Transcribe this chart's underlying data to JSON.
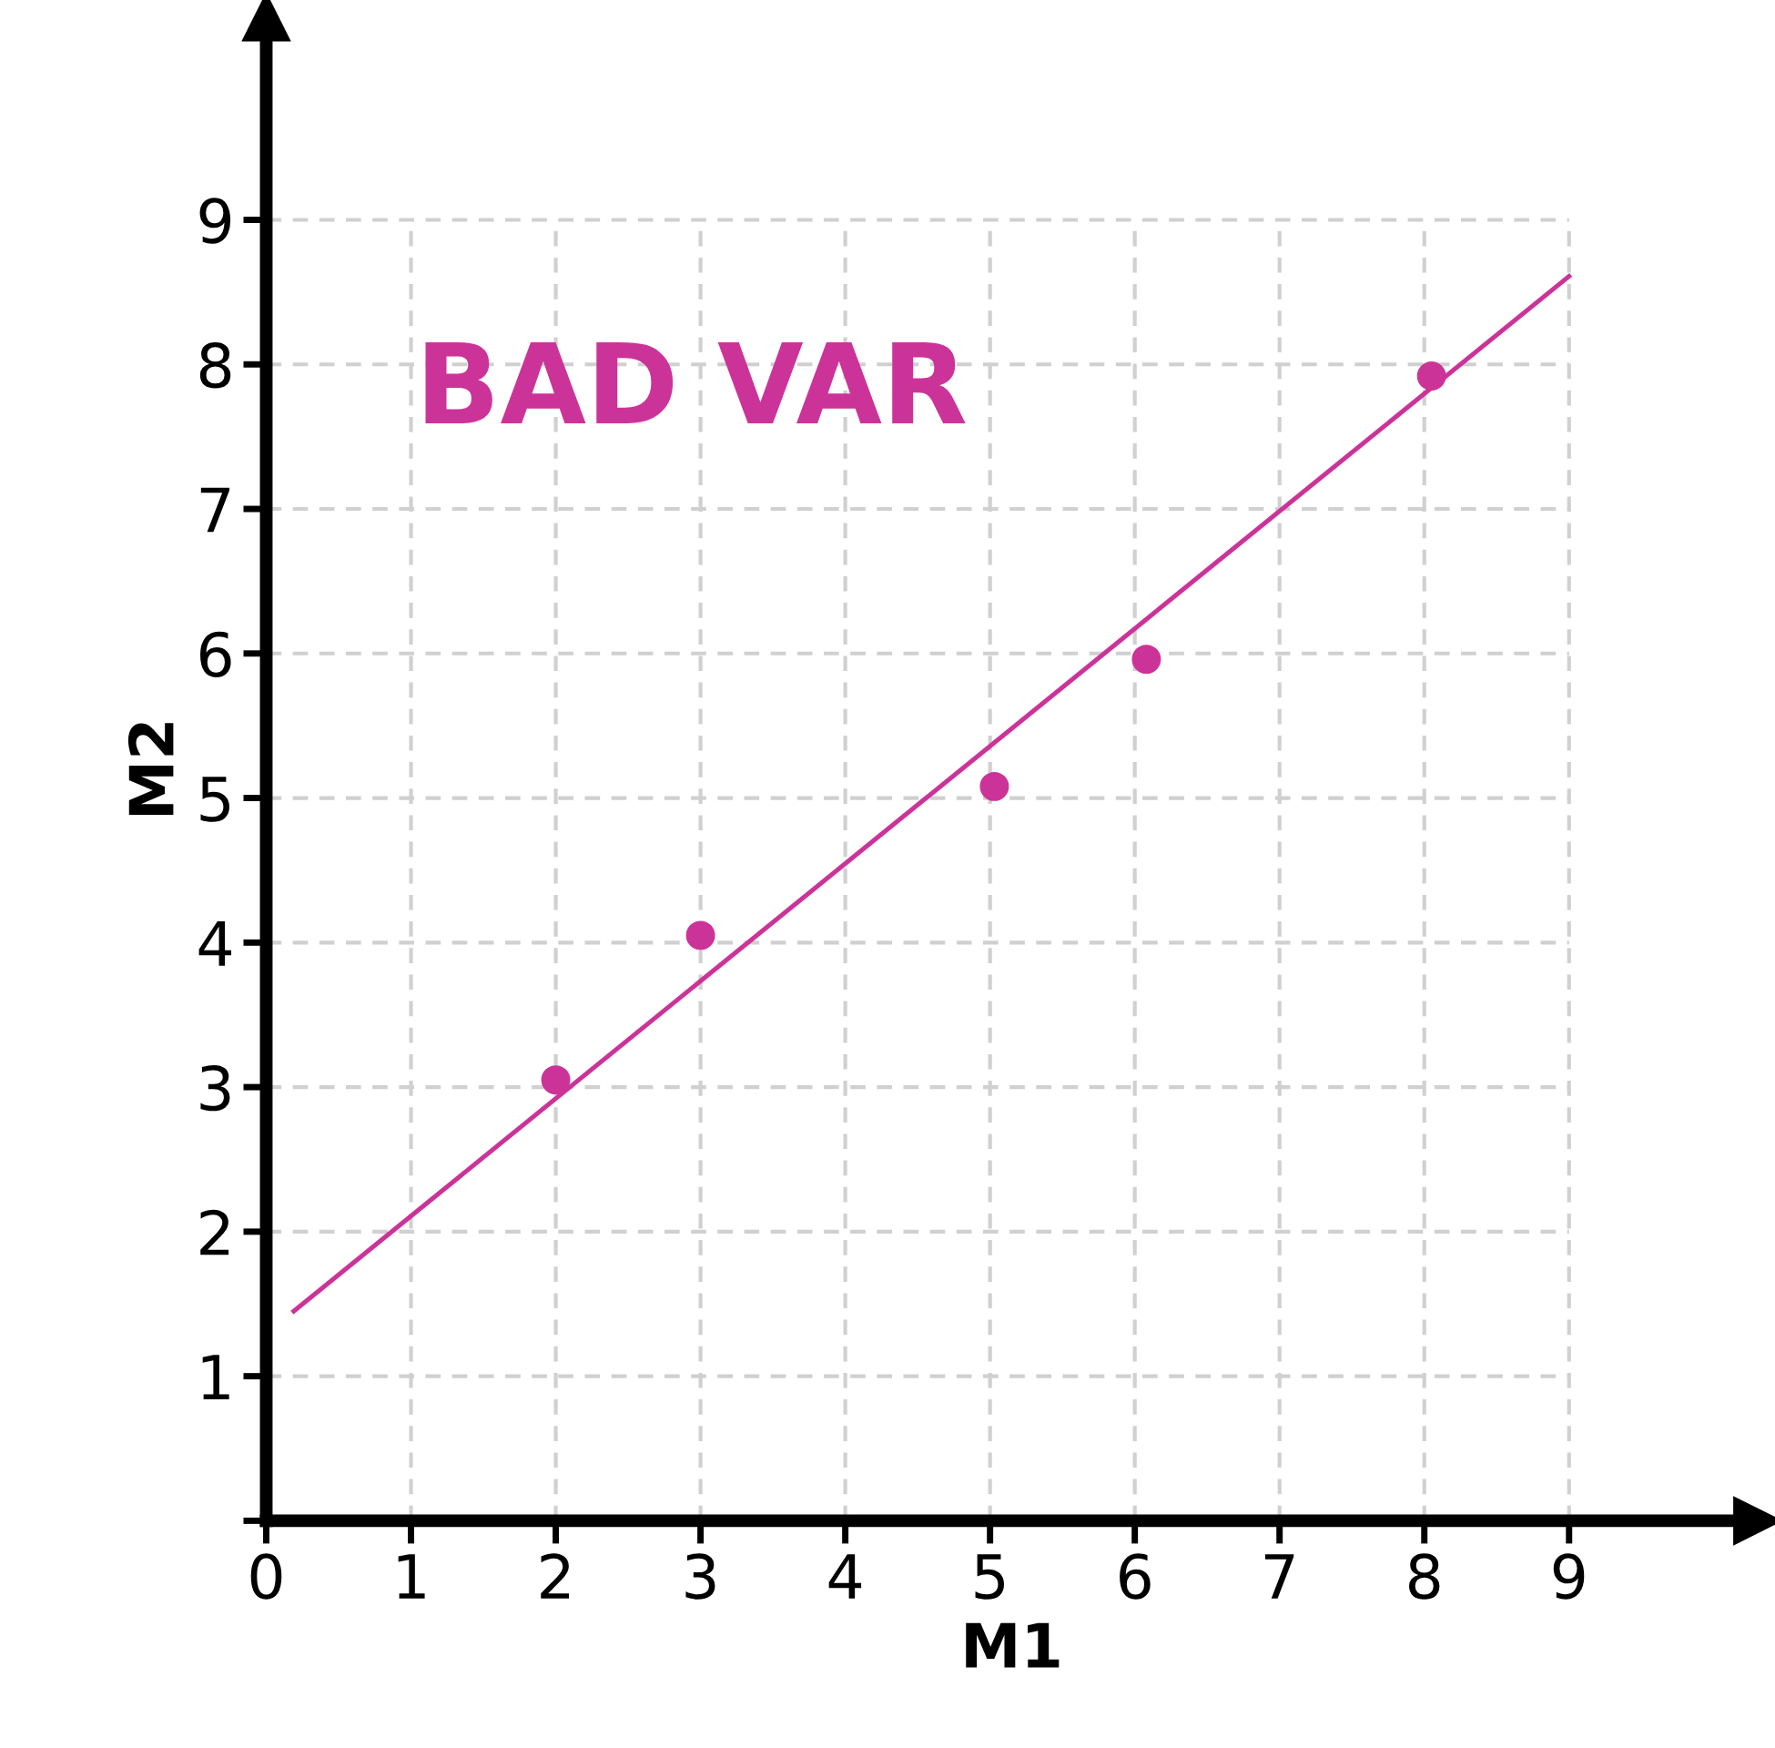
{
  "chart_data": {
    "type": "scatter",
    "xlabel": "M1",
    "ylabel": "M2",
    "annotations": [
      "BAD VAR"
    ],
    "series": [
      {
        "color": "#cc3399",
        "x": [
          2,
          3,
          5.03,
          6.08,
          8.05
        ],
        "values": [
          3.05,
          4.05,
          5.08,
          5.96,
          7.92
        ],
        "marker": "circle"
      },
      {
        "type": "line",
        "color": "#cc3399",
        "x": [
          0.19,
          9
        ],
        "values": [
          1.45,
          8.61
        ],
        "marker": "none",
        "line_style": "solid"
      }
    ],
    "xlim": [
      0,
      10.3
    ],
    "ylim": [
      0,
      10.4
    ],
    "xticks": [
      0,
      1,
      2,
      3,
      4,
      5,
      6,
      7,
      8,
      9
    ],
    "yticks": [
      {
        "value": 0,
        "label": null
      },
      1,
      2,
      3,
      4,
      5,
      6,
      7,
      8,
      9
    ],
    "grid": true
  }
}
